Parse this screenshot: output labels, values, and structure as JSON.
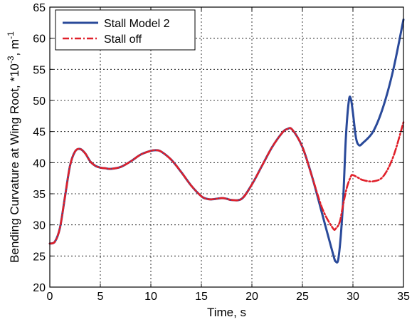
{
  "chart_data": {
    "type": "line",
    "title": "",
    "xlabel": "Time, s",
    "ylabel": "Bending Curvature at Wing Root, *10",
    "ylabel_sup1": "-3",
    "ylabel_mid": ", m",
    "ylabel_sup2": "-1",
    "xlim": [
      0,
      35
    ],
    "ylim": [
      20,
      65
    ],
    "xticks": [
      "0",
      "5",
      "10",
      "15",
      "20",
      "25",
      "30",
      "35"
    ],
    "yticks": [
      "20",
      "25",
      "30",
      "35",
      "40",
      "45",
      "50",
      "55",
      "60",
      "65"
    ],
    "grid": true,
    "legend_position": "top-left",
    "series": [
      {
        "name": "Stall Model 2",
        "color": "#2a4a9a",
        "style": "solid",
        "x": [
          0,
          0.5,
          1,
          1.5,
          2,
          2.5,
          3,
          3.5,
          4,
          4.5,
          5,
          5.5,
          6,
          7,
          8,
          9,
          10,
          10.5,
          11,
          12,
          13,
          14,
          15,
          15.5,
          16,
          17,
          17.5,
          18,
          19,
          20,
          21,
          22,
          23,
          23.5,
          24,
          25,
          26,
          27,
          28,
          28.3,
          28.6,
          29,
          29.3,
          29.6,
          29.8,
          30,
          30.3,
          30.6,
          31,
          32,
          33,
          34,
          35
        ],
        "y": [
          27,
          27.3,
          29.5,
          34.5,
          39.5,
          41.8,
          42.2,
          41.5,
          40.2,
          39.5,
          39.2,
          39.1,
          39,
          39.3,
          40.2,
          41.3,
          41.9,
          42,
          41.8,
          40.5,
          38.5,
          36.3,
          34.6,
          34.2,
          34.1,
          34.3,
          34.2,
          34,
          34.2,
          36.5,
          39.5,
          42.5,
          44.8,
          45.4,
          45.3,
          42.5,
          37.5,
          31.5,
          25.5,
          24.1,
          25,
          33,
          44,
          50,
          50.2,
          48,
          44,
          42.8,
          43.2,
          45,
          49,
          55,
          63
        ]
      },
      {
        "name": "Stall off",
        "color": "#e0202a",
        "style": "dashdot",
        "x": [
          0,
          0.5,
          1,
          1.5,
          2,
          2.5,
          3,
          3.5,
          4,
          4.5,
          5,
          5.5,
          6,
          7,
          8,
          9,
          10,
          10.5,
          11,
          12,
          13,
          14,
          15,
          15.5,
          16,
          17,
          17.5,
          18,
          19,
          20,
          21,
          22,
          23,
          23.5,
          24,
          25,
          26,
          27,
          28,
          28.3,
          28.7,
          29,
          29.4,
          29.8,
          30,
          30.5,
          31,
          32,
          33,
          34,
          35
        ],
        "y": [
          27,
          27.3,
          29.5,
          34.5,
          39.5,
          41.8,
          42.2,
          41.5,
          40.2,
          39.5,
          39.2,
          39.1,
          39,
          39.3,
          40.2,
          41.3,
          41.9,
          42,
          41.8,
          40.5,
          38.5,
          36.3,
          34.6,
          34.2,
          34.1,
          34.3,
          34.2,
          34,
          34.2,
          36.5,
          39.5,
          42.5,
          44.8,
          45.4,
          45.3,
          42.5,
          37.5,
          32.5,
          29.5,
          29.4,
          30.5,
          33,
          36,
          37.8,
          38,
          37.6,
          37.2,
          37,
          37.8,
          41,
          46.5
        ]
      }
    ]
  }
}
